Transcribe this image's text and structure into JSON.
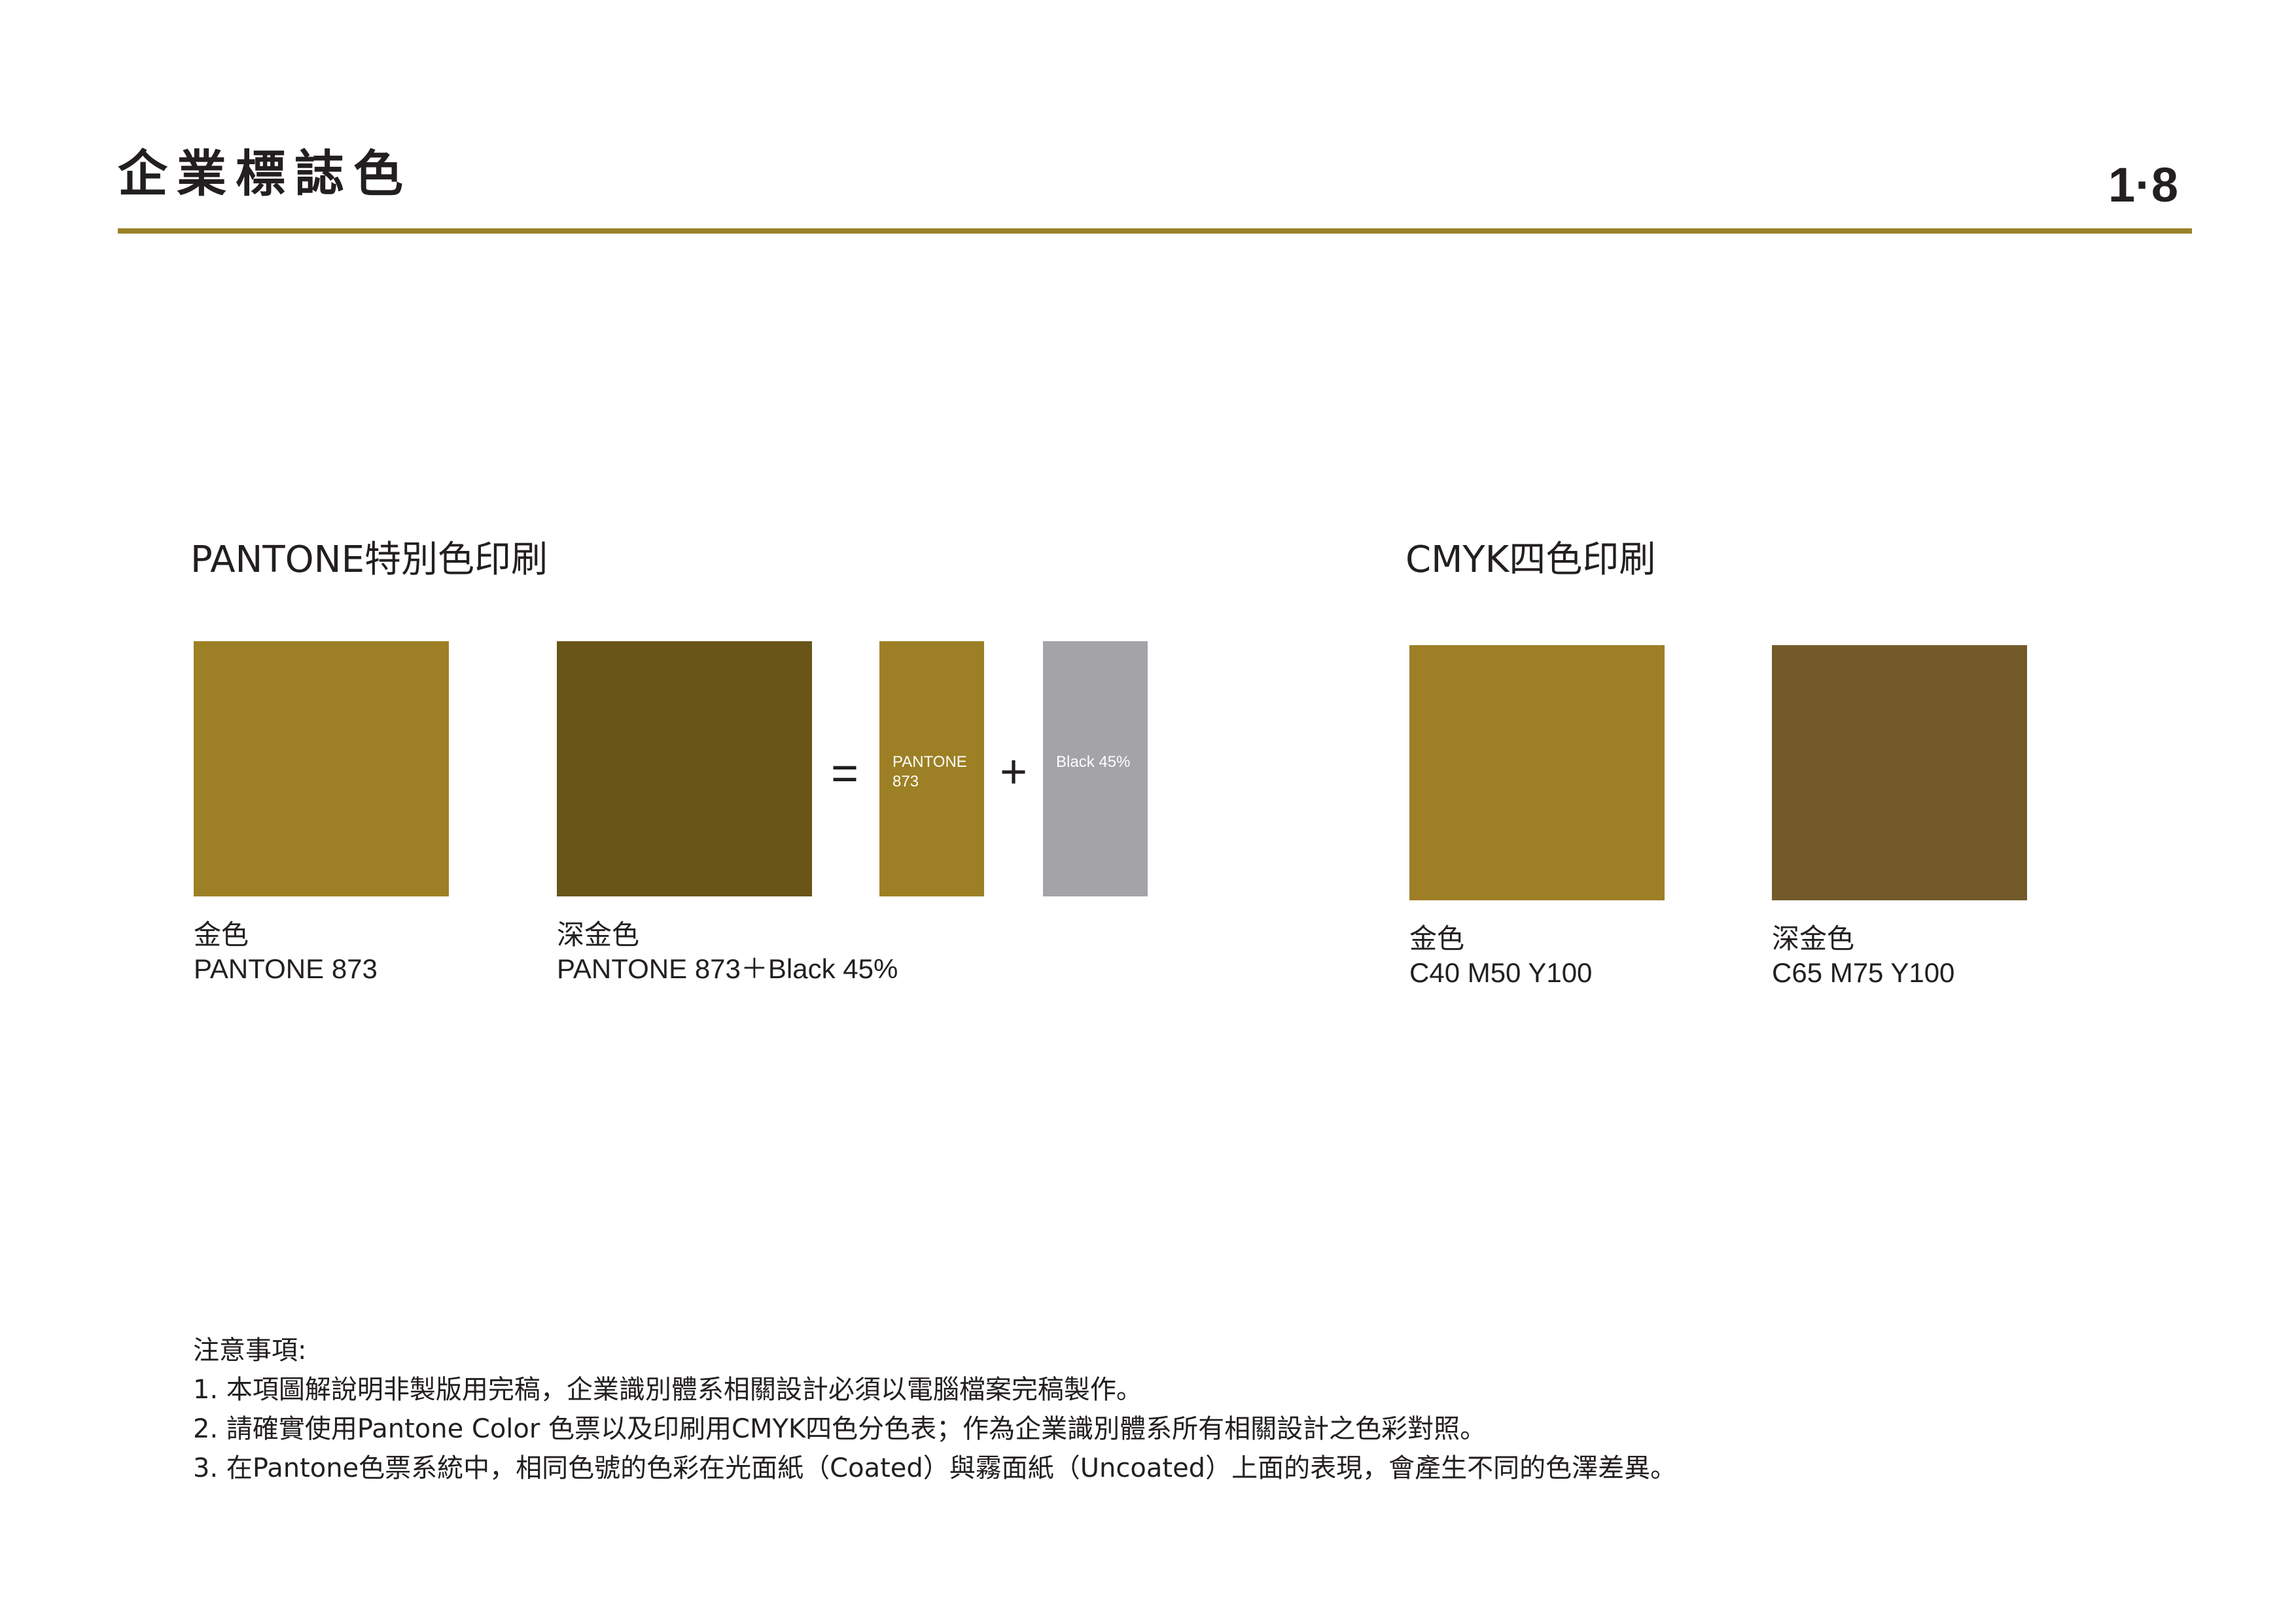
{
  "header": {
    "title": "企業標誌色",
    "page_number": "1·8"
  },
  "colors": {
    "gold": "#9d8025",
    "dark_gold": "#6a5519",
    "black45": "#a4a3a7",
    "cmyk_gold": "#9e7f26",
    "cmyk_dark_gold": "#725a29",
    "rule": "#9b8228"
  },
  "pantone_section": {
    "heading": "PANTONE特別色印刷",
    "swatches": [
      {
        "name": "金色",
        "spec": "PANTONE 873"
      },
      {
        "name": "深金色",
        "spec": "PANTONE 873＋Black 45%"
      }
    ],
    "formula": {
      "equals": "=",
      "plus": "+",
      "pantone_label": "PANTONE 873",
      "black_label": "Black 45%"
    }
  },
  "cmyk_section": {
    "heading": "CMYK四色印刷",
    "swatches": [
      {
        "name": "金色",
        "spec": "C40 M50 Y100"
      },
      {
        "name": "深金色",
        "spec": "C65 M75 Y100"
      }
    ]
  },
  "notes": {
    "title": "注意事項:",
    "items": [
      "1. 本項圖解說明非製版用完稿，企業識別體系相關設計必須以電腦檔案完稿製作。",
      "2. 請確實使用Pantone Color 色票以及印刷用CMYK四色分色表；作為企業識別體系所有相關設計之色彩對照。",
      "3. 在Pantone色票系統中，相同色號的色彩在光面紙（Coated）與霧面紙（Uncoated）上面的表現，會產生不同的色澤差異。"
    ]
  }
}
